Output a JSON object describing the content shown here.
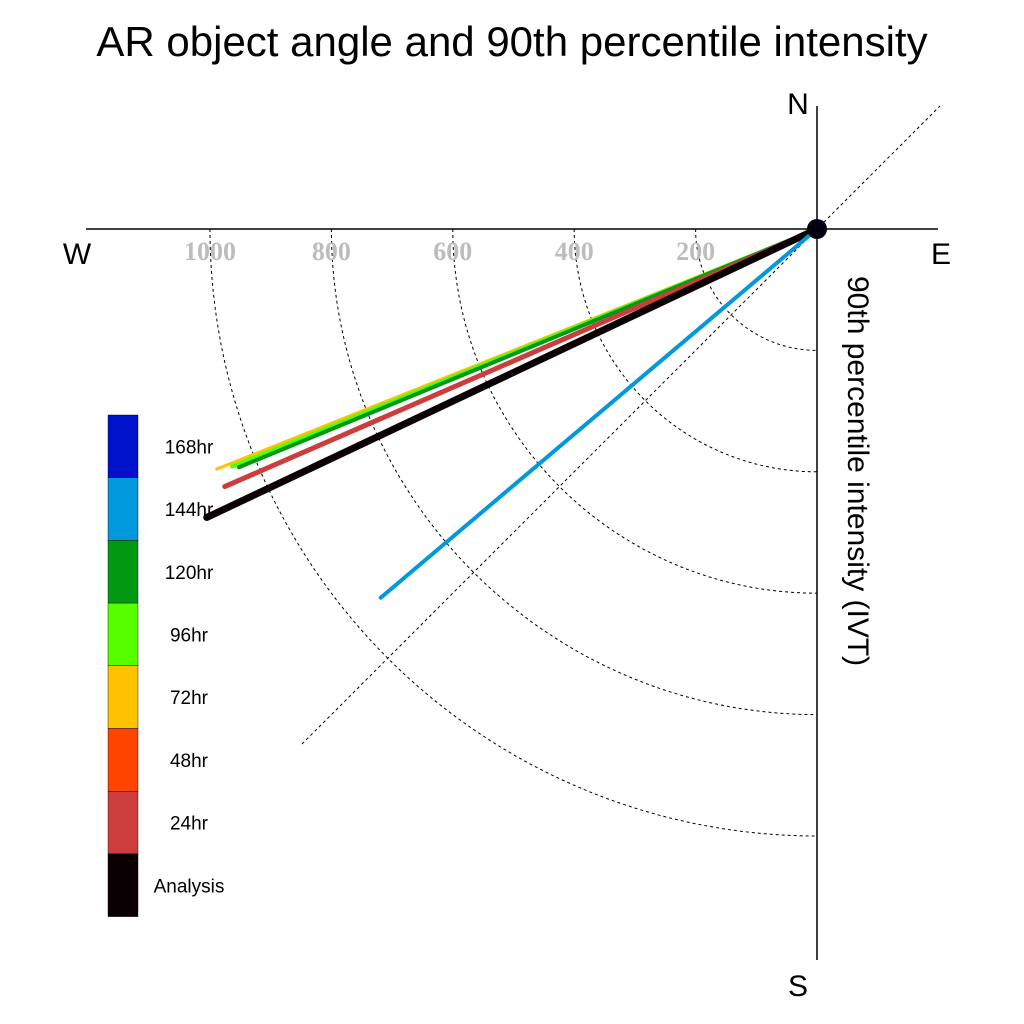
{
  "chart_data": {
    "type": "polar-vector",
    "title": "AR object angle and 90th percentile intensity",
    "ylabel": "90th percentile intensity (IVT)",
    "compass": {
      "north": "N",
      "south": "S",
      "east": "E",
      "west": "W"
    },
    "radial_ticks": [
      "200",
      "400",
      "600",
      "800",
      "1000"
    ],
    "radial_tick_values": [
      200,
      400,
      600,
      800,
      1000
    ],
    "rmax": 1200,
    "grid": true,
    "legend_position": "left",
    "legend": [
      {
        "label": "168hr",
        "color": "#0011cc"
      },
      {
        "label": "144hr",
        "color": "#0099dd"
      },
      {
        "label": "120hr",
        "color": "#009911"
      },
      {
        "label": "96hr",
        "color": "#55ff00"
      },
      {
        "label": "72hr",
        "color": "#ffc200"
      },
      {
        "label": "48hr",
        "color": "#ff4400"
      },
      {
        "label": "24hr",
        "color": "#cc3d3d"
      },
      {
        "label": "Analysis",
        "color": "#0a0004"
      }
    ],
    "series": [
      {
        "name": "72hr",
        "color": "#ffc200",
        "angle_deg": 248.2,
        "intensity": 1065,
        "width": 3
      },
      {
        "name": "96hr",
        "color": "#55ff00",
        "angle_deg": 247.9,
        "intensity": 1040,
        "width": 4
      },
      {
        "name": "120hr",
        "color": "#009911",
        "angle_deg": 247.6,
        "intensity": 1030,
        "width": 4
      },
      {
        "name": "24hr",
        "color": "#cc3d3d",
        "angle_deg": 246.5,
        "intensity": 1064,
        "width": 5
      },
      {
        "name": "Analysis",
        "color": "#0a0004",
        "angle_deg": 244.7,
        "intensity": 1112,
        "width": 7
      },
      {
        "name": "144hr",
        "color": "#0099dd",
        "angle_deg": 229.8,
        "intensity": 941,
        "width": 4
      }
    ]
  }
}
